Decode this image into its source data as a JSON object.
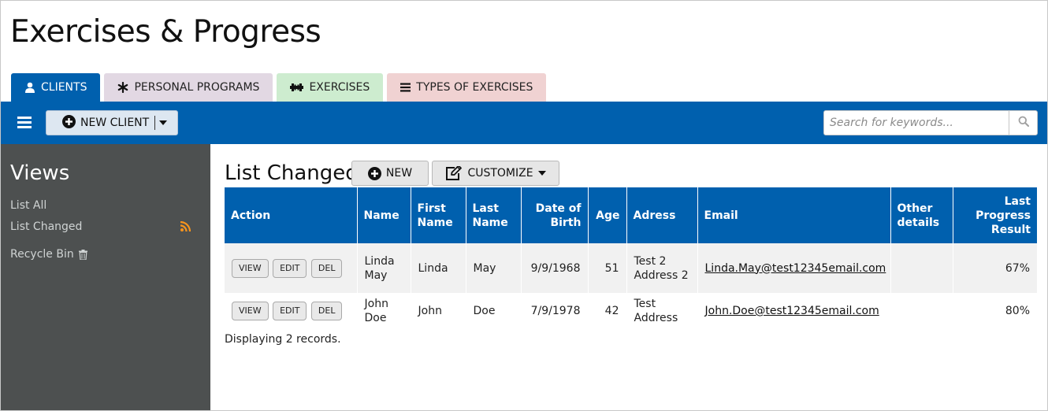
{
  "app": {
    "title": "Exercises & Progress"
  },
  "tabs": [
    {
      "label": "CLIENTS",
      "icon": "user-icon"
    },
    {
      "label": "PERSONAL PROGRAMS",
      "icon": "asterisk-icon"
    },
    {
      "label": "EXERCISES",
      "icon": "dumbbell-icon"
    },
    {
      "label": "TYPES OF EXERCISES",
      "icon": "list-icon"
    }
  ],
  "toolbar": {
    "new_client_label": "NEW CLIENT",
    "search_placeholder": "Search for keywords..."
  },
  "sidebar": {
    "title": "Views",
    "items": [
      {
        "label": "List All"
      },
      {
        "label": "List Changed"
      },
      {
        "label": "Recycle Bin"
      }
    ]
  },
  "main": {
    "title": "List Changed",
    "new_label": "NEW",
    "customize_label": "CUSTOMIZE",
    "columns": [
      "Action",
      "Name",
      "First Name",
      "Last Name",
      "Date of Birth",
      "Age",
      "Adress",
      "Email",
      "Other details",
      "Last Progress Result"
    ],
    "row_actions": [
      "VIEW",
      "EDIT",
      "DEL"
    ],
    "rows": [
      {
        "name": "Linda May",
        "first_name": "Linda",
        "last_name": "May",
        "dob": "9/9/1968",
        "age": "51",
        "address": "Test 2 Address 2",
        "email": "Linda.May@test12345email.com",
        "other": "",
        "progress": "67%"
      },
      {
        "name": "John Doe",
        "first_name": "John",
        "last_name": "Doe",
        "dob": "7/9/1978",
        "age": "42",
        "address": "Test Address",
        "email": "John.Doe@test12345email.com",
        "other": "",
        "progress": "80%"
      }
    ],
    "records_text": "Displaying 2 records."
  },
  "colors": {
    "primary": "#0060ae",
    "sidebar_bg": "#4d5050",
    "rss": "#f7941d",
    "tab_programs": "#e2d8e3",
    "tab_exercises": "#cdeccf",
    "tab_types": "#f0d2d2"
  }
}
